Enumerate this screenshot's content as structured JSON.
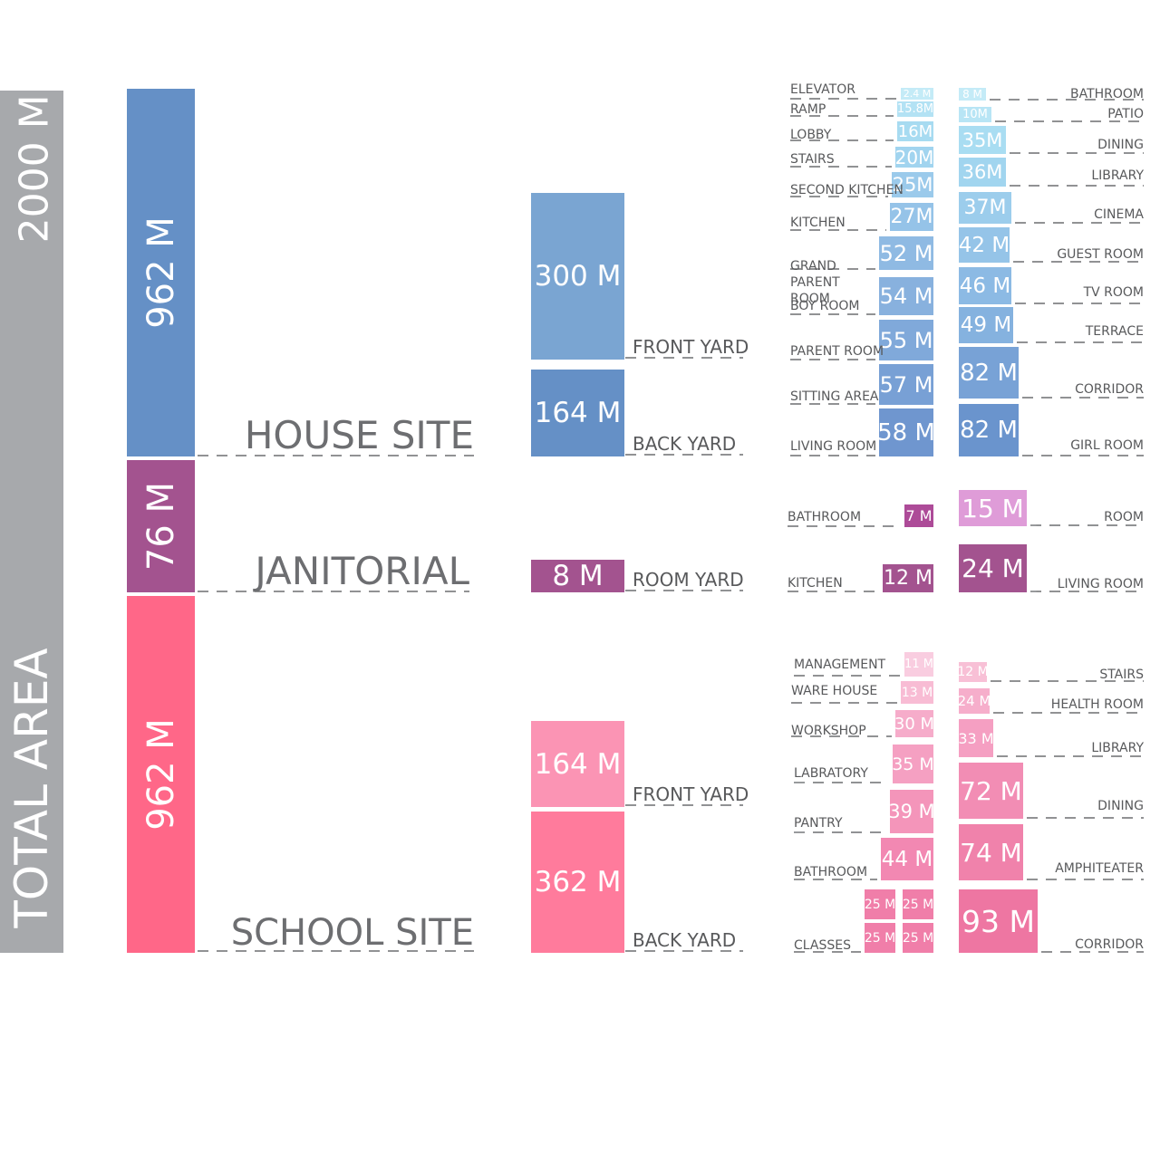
{
  "total": {
    "label": "TOTAL AREA",
    "value": "2000 M",
    "color": "#a7a9ac"
  },
  "sites": [
    {
      "id": "house",
      "name": "HOUSE SITE",
      "area": "962 M",
      "color": "#6590c6",
      "yards": [
        {
          "label": "FRONT YARD",
          "value": "300 M",
          "color": "#7aa5d2"
        },
        {
          "label": "BACK YARD",
          "value": "164 M",
          "color": "#6590c6"
        }
      ],
      "left_rooms": [
        {
          "label": "ELEVATOR",
          "value": "2.4 M",
          "color": "#c4ebf7"
        },
        {
          "label": "RAMP",
          "value": "15.8M",
          "color": "#b3e2f4"
        },
        {
          "label": "LOBBY",
          "value": "16M",
          "color": "#a7dbf1"
        },
        {
          "label": "STAIRS",
          "value": "20M",
          "color": "#a1d4ef"
        },
        {
          "label": "SECOND KITCHEN",
          "value": "25M",
          "color": "#9bcaeb"
        },
        {
          "label": "KITCHEN",
          "value": "27M",
          "color": "#95c3e8"
        },
        {
          "label": "GRAND PARENT ROOM",
          "value": "52 M",
          "color": "#8fbae3"
        },
        {
          "label": "BOY ROOM",
          "value": "54 M",
          "color": "#88b1de"
        },
        {
          "label": "PARENT ROOM",
          "value": "55 M",
          "color": "#80a9da"
        },
        {
          "label": "SITTING AREA",
          "value": "57 M",
          "color": "#78a0d5"
        },
        {
          "label": "LIVING ROOM",
          "value": "58 M",
          "color": "#6f96cf"
        }
      ],
      "right_rooms": [
        {
          "label": "BATHROOM",
          "value": "8 M",
          "color": "#c4ebf7"
        },
        {
          "label": "PATIO",
          "value": "10M",
          "color": "#b8e5f5"
        },
        {
          "label": "DINING",
          "value": "35M",
          "color": "#a9ddf2"
        },
        {
          "label": "LIBRARY",
          "value": "36M",
          "color": "#a1d5ef"
        },
        {
          "label": "CINEMA",
          "value": "37M",
          "color": "#9ccdec"
        },
        {
          "label": "GUEST ROOM",
          "value": "42 M",
          "color": "#95c4e8"
        },
        {
          "label": "TV ROOM",
          "value": "46 M",
          "color": "#8cbae4"
        },
        {
          "label": "TERRACE",
          "value": "49 M",
          "color": "#85b2df"
        },
        {
          "label": "CORRIDOR",
          "value": "82 M",
          "color": "#78a2d6"
        },
        {
          "label": "GIRL ROOM",
          "value": "82 M",
          "color": "#6a94cd"
        }
      ]
    },
    {
      "id": "janitorial",
      "name": "JANITORIAL",
      "area": "76 M",
      "color": "#a3538f",
      "yards": [
        {
          "label": "ROOM YARD",
          "value": "8 M",
          "color": "#a3538f"
        }
      ],
      "left_rooms": [
        {
          "label": "BATHROOM",
          "value": "7 M",
          "color": "#ad4b98"
        },
        {
          "label": "KITCHEN",
          "value": "12 M",
          "color": "#a3538f"
        }
      ],
      "right_rooms": [
        {
          "label": "ROOM",
          "value": "15 M",
          "color": "#df9cd8"
        },
        {
          "label": "LIVING ROOM",
          "value": "24 M",
          "color": "#a3538f"
        }
      ]
    },
    {
      "id": "school",
      "name": "SCHOOL SITE",
      "area": "962 M",
      "color": "#ff6788",
      "yards": [
        {
          "label": "FRONT YARD",
          "value": "164 M",
          "color": "#fb94b4"
        },
        {
          "label": "BACK YARD",
          "value": "362 M",
          "color": "#ff7b9c"
        }
      ],
      "left_rooms": [
        {
          "label": "MANAGEMENT",
          "value": "11 M",
          "color": "#f9cde0"
        },
        {
          "label": "WARE HOUSE",
          "value": "13 M",
          "color": "#f8bcd4"
        },
        {
          "label": "WORKSHOP",
          "value": "30 M",
          "color": "#f6acca"
        },
        {
          "label": "LABRATORY",
          "value": "35 M",
          "color": "#f5a0c2"
        },
        {
          "label": "PANTRY",
          "value": "39 M",
          "color": "#f495ba"
        },
        {
          "label": "BATHROOM",
          "value": "44 M",
          "color": "#f288b2"
        },
        {
          "label": "CLASSES",
          "value": "25 M",
          "color": "#f07ea9"
        }
      ],
      "right_rooms": [
        {
          "label": "STAIRS",
          "value": "12 M",
          "color": "#f8c0d6"
        },
        {
          "label": "HEALTH ROOM",
          "value": "24 M",
          "color": "#f6aecb"
        },
        {
          "label": "LIBRARY",
          "value": "33 M",
          "color": "#f59fc2"
        },
        {
          "label": "DINING",
          "value": "72 M",
          "color": "#f28db4"
        },
        {
          "label": "AMPHITEATER",
          "value": "74 M",
          "color": "#f082ab"
        },
        {
          "label": "CORRIDOR",
          "value": "93 M",
          "color": "#ee76a2"
        }
      ]
    }
  ]
}
